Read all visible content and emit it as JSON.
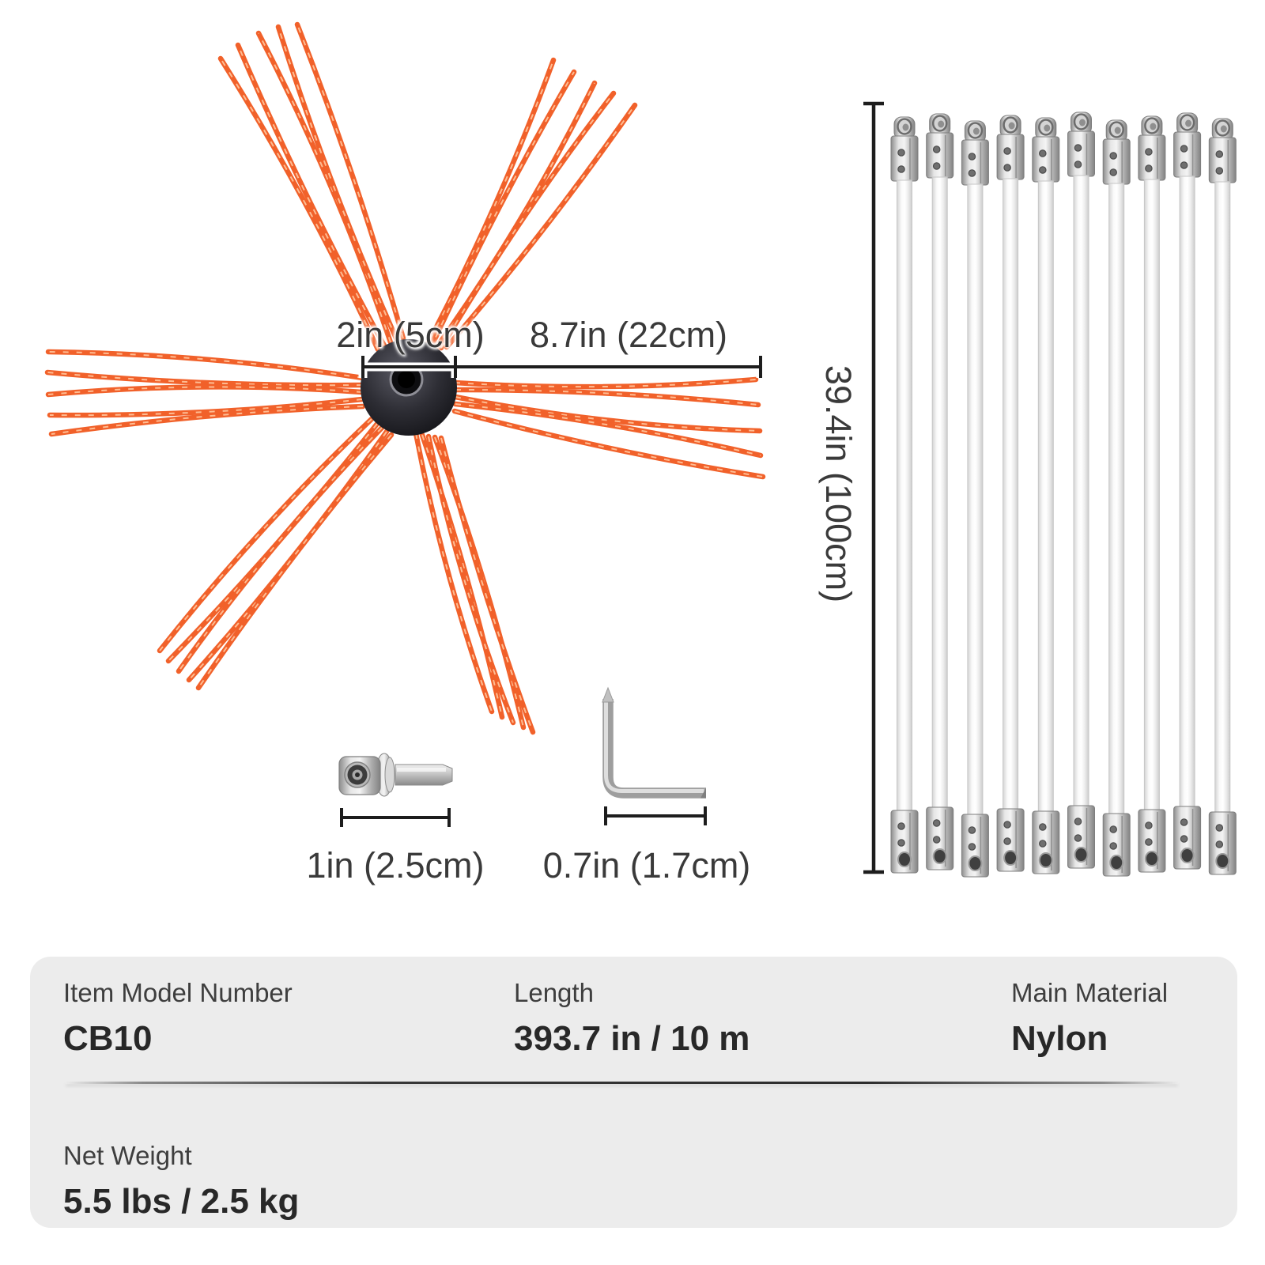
{
  "brush": {
    "hub_width_label": "2in (5cm)",
    "bristle_length_label": "8.7in (22cm)"
  },
  "rods": {
    "count": 10,
    "length_label": "39.4in (100cm)"
  },
  "adapter": {
    "length_label": "1in (2.5cm)"
  },
  "hex_key": {
    "size_label": "0.7in (1.7cm)"
  },
  "specs": {
    "item_model": {
      "label": "Item Model Number",
      "value": "CB10"
    },
    "length": {
      "label": "Length",
      "value": "393.7 in / 10 m"
    },
    "material": {
      "label": "Main Material",
      "value": "Nylon"
    },
    "weight": {
      "label": "Net Weight",
      "value": "5.5 lbs / 2.5 kg"
    }
  },
  "colors": {
    "bristle": "#f1612a",
    "bristle_highlight": "#ffc69d",
    "dim_line": "#1d1d1d",
    "label_text": "#3a3a3a",
    "panel_bg": "#ececec"
  }
}
